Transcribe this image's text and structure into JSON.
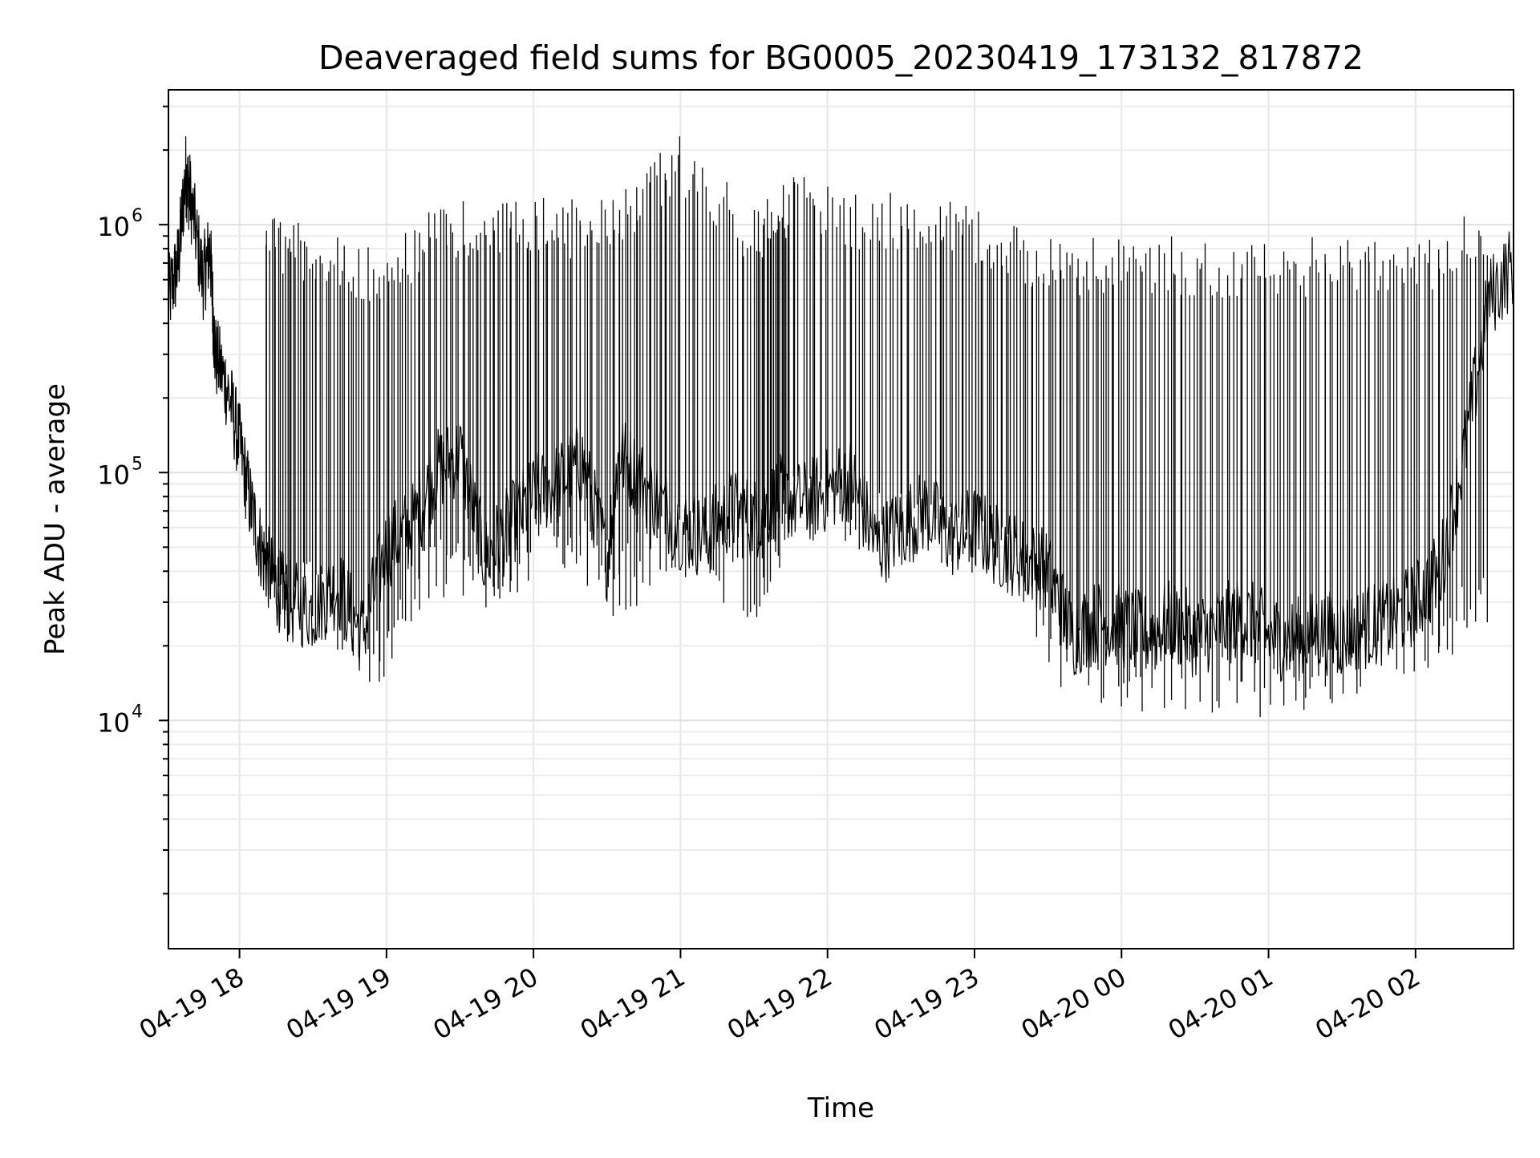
{
  "chart_data": {
    "type": "line",
    "title": "Deaveraged field sums for BG0005_20230419_173132_817872",
    "xlabel": "Time",
    "ylabel": "Peak ADU - average",
    "yscale": "log",
    "grid": true,
    "grid_minor": true,
    "xlim": [
      "2023-04-19 17:31",
      "2023-04-20 02:40"
    ],
    "ylim": [
      1200,
      3500000
    ],
    "x_ticks": [
      {
        "value": "2023-04-19 18:00",
        "label": "04-19 18"
      },
      {
        "value": "2023-04-19 19:00",
        "label": "04-19 19"
      },
      {
        "value": "2023-04-19 20:00",
        "label": "04-19 20"
      },
      {
        "value": "2023-04-19 21:00",
        "label": "04-19 21"
      },
      {
        "value": "2023-04-19 22:00",
        "label": "04-19 22"
      },
      {
        "value": "2023-04-19 23:00",
        "label": "04-19 23"
      },
      {
        "value": "2023-04-20 00:00",
        "label": "04-20 00"
      },
      {
        "value": "2023-04-20 01:00",
        "label": "04-20 01"
      },
      {
        "value": "2023-04-20 02:00",
        "label": "04-20 02"
      }
    ],
    "y_ticks": [
      {
        "value": 10000,
        "base": "10",
        "exponent": "4"
      },
      {
        "value": 100000,
        "base": "10",
        "exponent": "5"
      },
      {
        "value": 1000000,
        "base": "10",
        "exponent": "6"
      }
    ],
    "series": [
      {
        "color": "#000000",
        "x": [
          "2023-04-19 17:31",
          "2023-04-19 17:35",
          "2023-04-19 17:38",
          "2023-04-19 17:40",
          "2023-04-19 17:45",
          "2023-04-19 17:48",
          "2023-04-19 17:50",
          "2023-04-19 17:55",
          "2023-04-19 18:00",
          "2023-04-19 18:05",
          "2023-04-19 18:10",
          "2023-04-19 18:15",
          "2023-04-19 18:20",
          "2023-04-19 18:30",
          "2023-04-19 18:40",
          "2023-04-19 18:50",
          "2023-04-19 19:00",
          "2023-04-19 19:10",
          "2023-04-19 19:20",
          "2023-04-19 19:30",
          "2023-04-19 19:40",
          "2023-04-19 19:50",
          "2023-04-19 20:00",
          "2023-04-19 20:10",
          "2023-04-19 20:20",
          "2023-04-19 20:30",
          "2023-04-19 20:35",
          "2023-04-19 20:45",
          "2023-04-19 21:00",
          "2023-04-19 21:10",
          "2023-04-19 21:20",
          "2023-04-19 21:30",
          "2023-04-19 21:40",
          "2023-04-19 21:50",
          "2023-04-19 22:00",
          "2023-04-19 22:10",
          "2023-04-19 22:20",
          "2023-04-19 22:30",
          "2023-04-19 22:40",
          "2023-04-19 22:50",
          "2023-04-19 23:00",
          "2023-04-19 23:10",
          "2023-04-19 23:20",
          "2023-04-19 23:30",
          "2023-04-19 23:40",
          "2023-04-19 23:50",
          "2023-04-20 00:00",
          "2023-04-20 00:10",
          "2023-04-20 00:20",
          "2023-04-20 00:30",
          "2023-04-20 00:40",
          "2023-04-20 00:50",
          "2023-04-20 01:00",
          "2023-04-20 01:10",
          "2023-04-20 01:20",
          "2023-04-20 01:30",
          "2023-04-20 01:40",
          "2023-04-20 01:50",
          "2023-04-20 02:00",
          "2023-04-20 02:10",
          "2023-04-20 02:20",
          "2023-04-20 02:30",
          "2023-04-20 02:40"
        ],
        "y": [
          500000,
          700000,
          1600000,
          1300000,
          600000,
          800000,
          300000,
          220000,
          130000,
          70000,
          45000,
          35000,
          30000,
          28000,
          35000,
          22000,
          50000,
          60000,
          100000,
          120000,
          45000,
          60000,
          80000,
          90000,
          110000,
          45000,
          120000,
          90000,
          60000,
          55000,
          70000,
          65000,
          80000,
          75000,
          85000,
          95000,
          50000,
          60000,
          70000,
          55000,
          60000,
          50000,
          45000,
          40000,
          22000,
          25000,
          24000,
          22000,
          25000,
          22000,
          24000,
          26000,
          22000,
          21000,
          23000,
          22000,
          24000,
          25000,
          30000,
          40000,
          120000,
          500000,
          700000
        ]
      },
      {
        "name_hidden": "",
        "color": "#000000",
        "kind": "spike-envelope",
        "x": [
          "2023-04-19 18:10",
          "2023-04-19 18:30",
          "2023-04-19 18:55",
          "2023-04-19 19:20",
          "2023-04-19 19:45",
          "2023-04-19 20:10",
          "2023-04-19 20:35",
          "2023-04-19 20:58",
          "2023-04-19 21:30",
          "2023-04-19 21:45",
          "2023-04-19 22:15",
          "2023-04-19 22:45",
          "2023-04-19 23:10",
          "2023-04-19 23:35",
          "2023-04-20 00:00",
          "2023-04-20 00:30",
          "2023-04-20 01:00",
          "2023-04-20 01:30",
          "2023-04-20 02:00",
          "2023-04-20 02:30"
        ],
        "y": [
          1100000,
          1000000,
          800000,
          1200000,
          1300000,
          1300000,
          1300000,
          2400000,
          1200000,
          1600000,
          1400000,
          1400000,
          1100000,
          900000,
          900000,
          900000,
          900000,
          900000,
          900000,
          1200000
        ],
        "lows": [
          25000,
          22000,
          13000,
          30000,
          28000,
          42000,
          25000,
          40000,
          24000,
          50000,
          45000,
          40000,
          35000,
          13000,
          11000,
          10000,
          10000,
          12000,
          15000,
          20000
        ]
      }
    ]
  }
}
